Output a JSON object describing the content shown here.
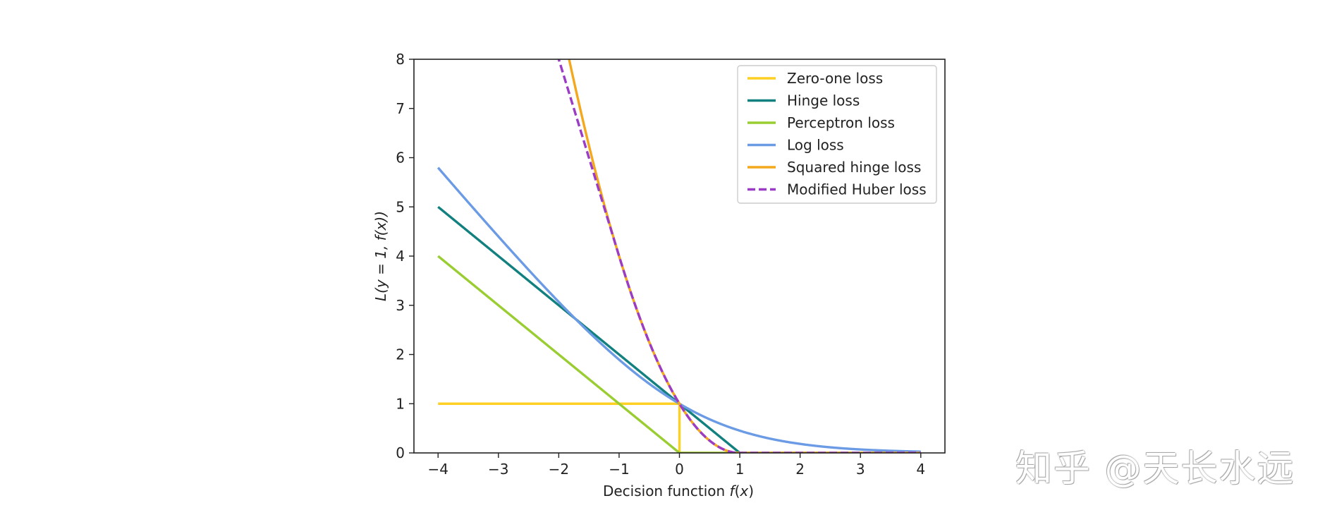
{
  "chart_data": {
    "type": "line",
    "title": "",
    "xlabel": "Decision function f(x)",
    "xlabel_parts": {
      "text": "Decision function ",
      "math": "f",
      "paren_open": "(",
      "var": "x",
      "paren_close": ")"
    },
    "ylabel": "L(y = 1, f(x))",
    "xlim": [
      -4.4,
      4.4
    ],
    "ylim": [
      0,
      8
    ],
    "xticks": [
      -4,
      -3,
      -2,
      -1,
      0,
      1,
      2,
      3,
      4
    ],
    "xtick_labels": [
      "−4",
      "−3",
      "−2",
      "−1",
      "0",
      "1",
      "2",
      "3",
      "4"
    ],
    "yticks": [
      0,
      1,
      2,
      3,
      4,
      5,
      6,
      7,
      8
    ],
    "ytick_labels": [
      "0",
      "1",
      "2",
      "3",
      "4",
      "5",
      "6",
      "7",
      "8"
    ],
    "grid": false,
    "legend_position": "top-right",
    "x_domain": [
      -4,
      4
    ],
    "series": [
      {
        "name": "Zero-one loss",
        "color": "#fdd023",
        "style": "solid",
        "formula": "zero_one"
      },
      {
        "name": "Hinge loss",
        "color": "#138080",
        "style": "solid",
        "formula": "hinge"
      },
      {
        "name": "Perceptron loss",
        "color": "#9acd32",
        "style": "solid",
        "formula": "perceptron"
      },
      {
        "name": "Log loss",
        "color": "#6c9be6",
        "style": "solid",
        "formula": "log"
      },
      {
        "name": "Squared hinge loss",
        "color": "#f4a81d",
        "style": "solid",
        "formula": "squared_hinge"
      },
      {
        "name": "Modified Huber loss",
        "color": "#9b3cc6",
        "style": "dashed",
        "formula": "modified_huber"
      }
    ]
  },
  "watermark": {
    "text": "知乎 @天长水远"
  }
}
